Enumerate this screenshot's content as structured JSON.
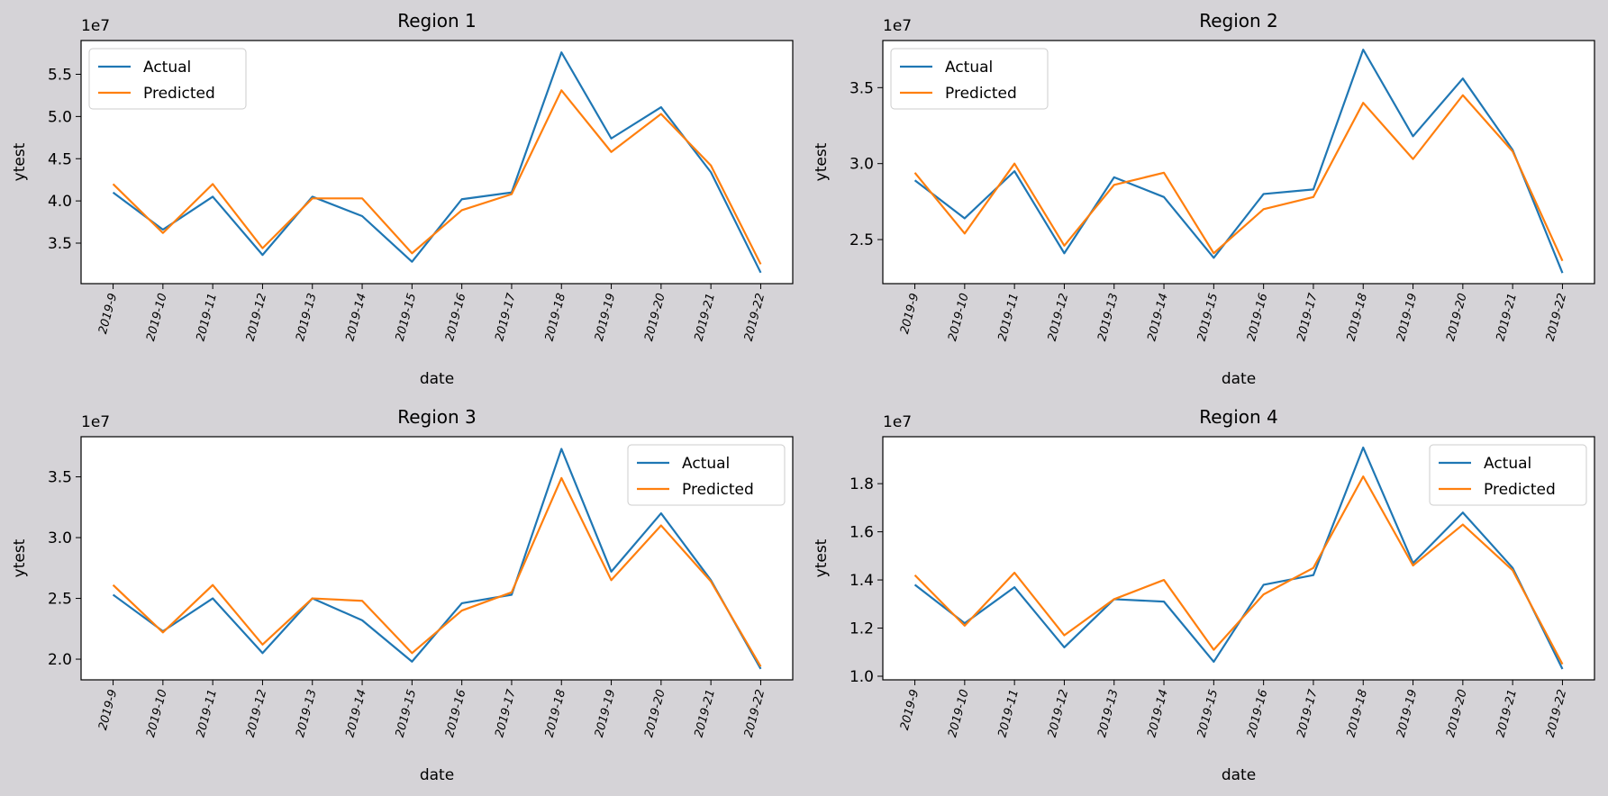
{
  "figure": {
    "background": "#d5d3d7"
  },
  "series_styles": [
    {
      "color": "#1f77b4"
    },
    {
      "color": "#ff7f0e"
    }
  ],
  "chart_data": [
    {
      "type": "line",
      "title": "Region 1",
      "xlabel": "date",
      "ylabel": "ytest",
      "offset_label": "1e7",
      "legend_position": "upper-left",
      "categories": [
        "2019-9",
        "2019-10",
        "2019-11",
        "2019-12",
        "2019-13",
        "2019-14",
        "2019-15",
        "2019-16",
        "2019-17",
        "2019-18",
        "2019-19",
        "2019-20",
        "2019-21",
        "2019-22"
      ],
      "ylim": [
        3.02,
        5.9
      ],
      "yticks": [
        3.5,
        4.0,
        4.5,
        5.0,
        5.5
      ],
      "ytick_labels": [
        "3.5",
        "4.0",
        "4.5",
        "5.0",
        "5.5"
      ],
      "series": [
        {
          "name": "Actual",
          "values": [
            4.1,
            3.66,
            4.05,
            3.36,
            4.05,
            3.82,
            3.28,
            4.02,
            4.1,
            5.76,
            4.74,
            5.11,
            4.34,
            3.15
          ]
        },
        {
          "name": "Predicted",
          "values": [
            4.2,
            3.62,
            4.2,
            3.44,
            4.03,
            4.03,
            3.38,
            3.89,
            4.08,
            5.31,
            4.58,
            5.03,
            4.42,
            3.25
          ]
        }
      ]
    },
    {
      "type": "line",
      "title": "Region 2",
      "xlabel": "date",
      "ylabel": "ytest",
      "offset_label": "1e7",
      "legend_position": "upper-left",
      "categories": [
        "2019-9",
        "2019-10",
        "2019-11",
        "2019-12",
        "2019-13",
        "2019-14",
        "2019-15",
        "2019-16",
        "2019-17",
        "2019-18",
        "2019-19",
        "2019-20",
        "2019-21",
        "2019-22"
      ],
      "ylim": [
        2.21,
        3.81
      ],
      "yticks": [
        2.5,
        3.0,
        3.5
      ],
      "ytick_labels": [
        "2.5",
        "3.0",
        "3.5"
      ],
      "series": [
        {
          "name": "Actual",
          "values": [
            2.89,
            2.64,
            2.95,
            2.41,
            2.91,
            2.78,
            2.38,
            2.8,
            2.83,
            3.75,
            3.18,
            3.56,
            3.09,
            2.28
          ]
        },
        {
          "name": "Predicted",
          "values": [
            2.94,
            2.54,
            3.0,
            2.46,
            2.86,
            2.94,
            2.41,
            2.7,
            2.78,
            3.4,
            3.03,
            3.45,
            3.08,
            2.36
          ]
        }
      ]
    },
    {
      "type": "line",
      "title": "Region 3",
      "xlabel": "date",
      "ylabel": "ytest",
      "offset_label": "1e7",
      "legend_position": "upper-right",
      "categories": [
        "2019-9",
        "2019-10",
        "2019-11",
        "2019-12",
        "2019-13",
        "2019-14",
        "2019-15",
        "2019-16",
        "2019-17",
        "2019-18",
        "2019-19",
        "2019-20",
        "2019-21",
        "2019-22"
      ],
      "ylim": [
        1.83,
        3.83
      ],
      "yticks": [
        2.0,
        2.5,
        3.0,
        3.5
      ],
      "ytick_labels": [
        "2.0",
        "2.5",
        "3.0",
        "3.5"
      ],
      "series": [
        {
          "name": "Actual",
          "values": [
            2.53,
            2.23,
            2.5,
            2.05,
            2.5,
            2.32,
            1.98,
            2.46,
            2.53,
            3.73,
            2.72,
            3.2,
            2.65,
            1.92
          ]
        },
        {
          "name": "Predicted",
          "values": [
            2.61,
            2.22,
            2.61,
            2.12,
            2.5,
            2.48,
            2.05,
            2.4,
            2.55,
            3.49,
            2.65,
            3.1,
            2.64,
            1.94
          ]
        }
      ]
    },
    {
      "type": "line",
      "title": "Region 4",
      "xlabel": "date",
      "ylabel": "ytest",
      "offset_label": "1e7",
      "legend_position": "upper-right",
      "categories": [
        "2019-9",
        "2019-10",
        "2019-11",
        "2019-12",
        "2019-13",
        "2019-14",
        "2019-15",
        "2019-16",
        "2019-17",
        "2019-18",
        "2019-19",
        "2019-20",
        "2019-21",
        "2019-22"
      ],
      "ylim": [
        0.985,
        1.995
      ],
      "yticks": [
        1.0,
        1.2,
        1.4,
        1.6,
        1.8
      ],
      "ytick_labels": [
        "1.0",
        "1.2",
        "1.4",
        "1.6",
        "1.8"
      ],
      "series": [
        {
          "name": "Actual",
          "values": [
            1.38,
            1.22,
            1.37,
            1.12,
            1.32,
            1.31,
            1.06,
            1.38,
            1.42,
            1.95,
            1.47,
            1.68,
            1.45,
            1.03
          ]
        },
        {
          "name": "Predicted",
          "values": [
            1.42,
            1.21,
            1.43,
            1.17,
            1.32,
            1.4,
            1.11,
            1.34,
            1.45,
            1.83,
            1.46,
            1.63,
            1.44,
            1.05
          ]
        }
      ]
    }
  ]
}
